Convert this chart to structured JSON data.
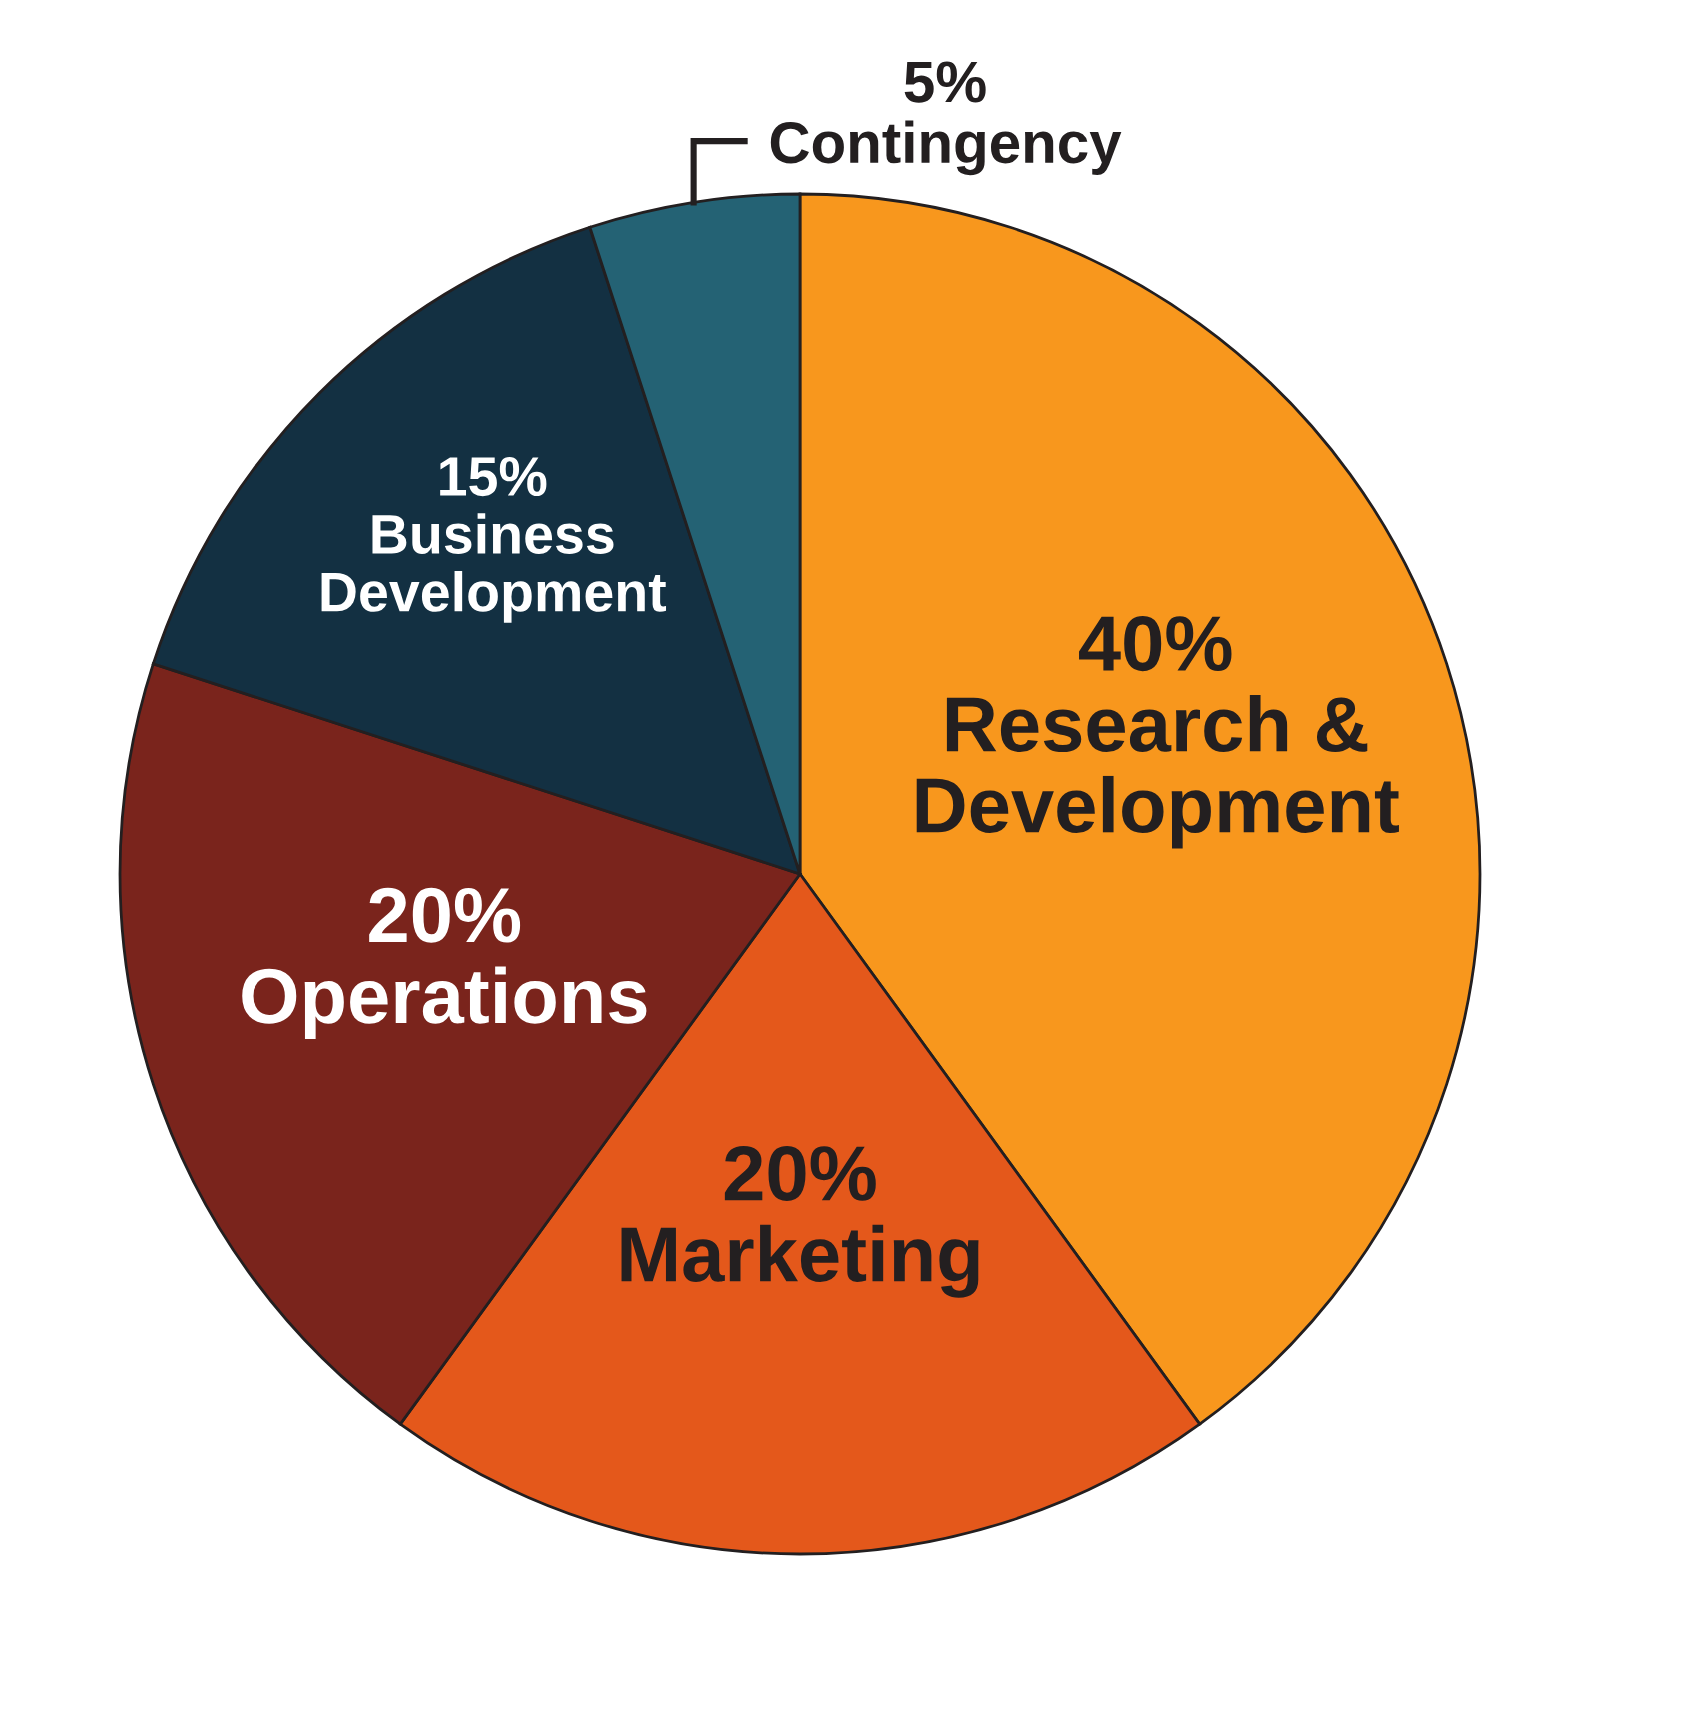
{
  "chart_data": {
    "type": "pie",
    "categories": [
      "Research & Development",
      "Marketing",
      "Operations",
      "Business Development",
      "Contingency"
    ],
    "values": [
      40,
      20,
      20,
      15,
      5
    ],
    "value_labels": [
      "40%",
      "20%",
      "20%",
      "15%",
      "5%"
    ],
    "colors": [
      "#f8971d",
      "#e4581b",
      "#7a241c",
      "#133042",
      "#246274"
    ]
  }
}
